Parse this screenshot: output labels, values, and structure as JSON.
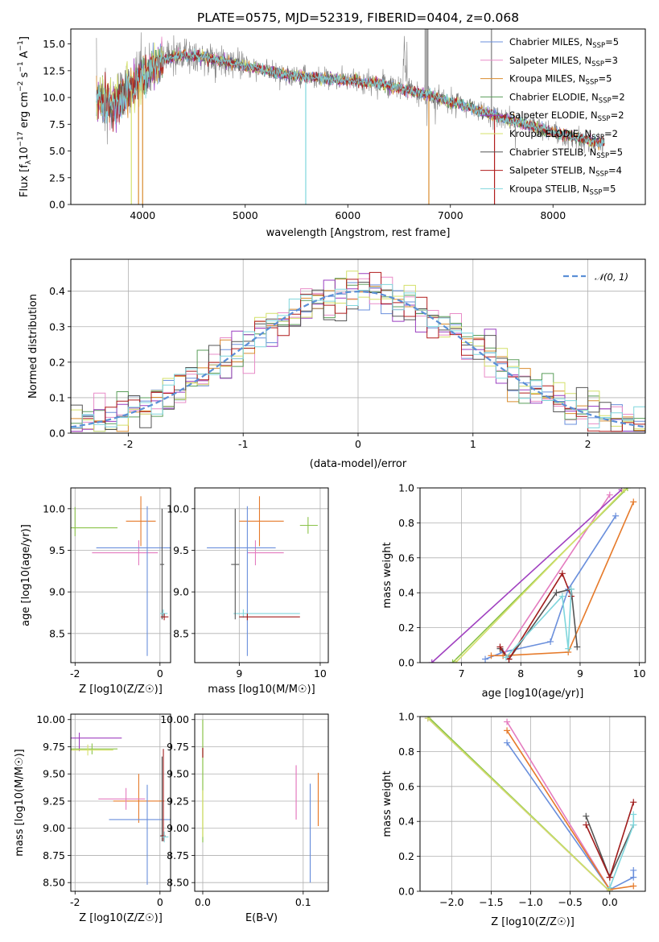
{
  "figure_title": "PLATE=0575, MJD=52319, FIBERID=0404, z=0.068",
  "colors": {
    "series": [
      "#6a8fdc",
      "#e88cc8",
      "#d98c2e",
      "#5a9e5a",
      "#9b3fc0",
      "#d4e06a",
      "#555555",
      "#b01c1c",
      "#7fd6dc"
    ],
    "kn": [
      "#6a8fdc",
      "#e47bbf",
      "#e67a2a",
      "#555555",
      "#a01c1c",
      "#7fd6dc",
      "#a040c0",
      "#8bc34a",
      "#d4e06a"
    ]
  },
  "chart_data": [
    {
      "type": "line",
      "name": "spectrum",
      "xlabel": "wavelength [Angstrom, rest frame]",
      "ylabel_main": "Flux [f",
      "ylabel_sub": "λ",
      "ylabel_rest": "10",
      "ylabel_sup1": "−17",
      "ylabel_tail": " erg cm",
      "ylabel_sup2": "−2",
      "ylabel_tail2": " s",
      "ylabel_sup3": "−1",
      "ylabel_tail3": " A",
      "ylabel_sup4": "−1",
      "ylabel_end": "]",
      "xlim": [
        3300,
        8900
      ],
      "ylim": [
        0,
        16.4
      ],
      "xticks": [
        4000,
        5000,
        6000,
        7000,
        8000
      ],
      "yticks": [
        "0.0",
        "2.5",
        "5.0",
        "7.5",
        "10.0",
        "12.5",
        "15.0"
      ],
      "legend": [
        {
          "pre": "Chabrier MILES, N",
          "sub": "SSP",
          "post": "=5"
        },
        {
          "pre": "Salpeter MILES, N",
          "sub": "SSP",
          "post": "=3"
        },
        {
          "pre": "Kroupa MILES, N",
          "sub": "SSP",
          "post": "=5"
        },
        {
          "pre": "Chabrier ELODIE, N",
          "sub": "SSP",
          "post": "=2"
        },
        {
          "pre": "Salpeter ELODIE, N",
          "sub": "SSP",
          "post": "=2"
        },
        {
          "pre": "Kroupa ELODIE, N",
          "sub": "SSP",
          "post": "=2"
        },
        {
          "pre": "Chabrier STELIB, N",
          "sub": "SSP",
          "post": "=5"
        },
        {
          "pre": "Salpeter STELIB, N",
          "sub": "SSP",
          "post": "=4"
        },
        {
          "pre": "Kroupa STELIB, N",
          "sub": "SSP",
          "post": "=5"
        }
      ],
      "continuum": [
        [
          3550,
          10.0
        ],
        [
          3700,
          9.2
        ],
        [
          3800,
          10.0
        ],
        [
          3900,
          10.8
        ],
        [
          4000,
          12.0
        ],
        [
          4200,
          13.5
        ],
        [
          4400,
          14.0
        ],
        [
          4700,
          13.6
        ],
        [
          5000,
          12.9
        ],
        [
          5300,
          12.3
        ],
        [
          5600,
          11.9
        ],
        [
          6000,
          11.6
        ],
        [
          6300,
          11.3
        ],
        [
          6600,
          10.7
        ],
        [
          6900,
          9.9
        ],
        [
          7200,
          9.0
        ],
        [
          7500,
          8.1
        ],
        [
          7800,
          7.3
        ],
        [
          8100,
          6.5
        ],
        [
          8400,
          5.9
        ],
        [
          8500,
          5.7
        ]
      ]
    },
    {
      "type": "line",
      "name": "residual-histogram",
      "xlabel": "(data-model)/error",
      "ylabel": "Normed distribution",
      "xlim": [
        -2.5,
        2.5
      ],
      "ylim": [
        0,
        0.49
      ],
      "xticks": [
        -2,
        -1,
        0,
        1,
        2
      ],
      "yticks": [
        "0.0",
        "0.1",
        "0.2",
        "0.3",
        "0.4"
      ],
      "legend": "𝒩(0, 1)",
      "bin_width": 0.1
    },
    {
      "type": "scatter",
      "name": "age-vs-Z",
      "xlabel": "Z [log10(Z/Z☉)]",
      "ylabel": "age  [log10(age/yr)]",
      "xlim": [
        -2.1,
        0.25
      ],
      "ylim": [
        8.15,
        10.25
      ],
      "xticks": [
        -2,
        0
      ],
      "yticks": [
        "8.5",
        "9.0",
        "9.5",
        "10.0"
      ],
      "points": [
        {
          "x": -0.45,
          "y": 9.85,
          "ex": [
            0.35,
            0.35
          ],
          "ey": [
            0.3,
            0.3
          ],
          "c": 2
        },
        {
          "x": -0.5,
          "y": 9.47,
          "ex": [
            1.1,
            0.45
          ],
          "ey": [
            0.15,
            0.15
          ],
          "c": 1
        },
        {
          "x": -0.3,
          "y": 9.53,
          "ex": [
            1.2,
            1.0
          ],
          "ey": [
            1.3,
            0.5
          ],
          "c": 0
        },
        {
          "x": -2.0,
          "y": 9.77,
          "ex": [
            0.1,
            1.0
          ],
          "ey": [
            0.1,
            0.25
          ],
          "c": 7
        },
        {
          "x": 0.05,
          "y": 9.33,
          "ex": [
            0.05,
            0.05
          ],
          "ey": [
            0.66,
            0.67
          ],
          "c": 3
        },
        {
          "x": 0.08,
          "y": 8.74,
          "ex": [
            0.08,
            0.1
          ],
          "ey": [
            0.05,
            0.05
          ],
          "c": 5
        },
        {
          "x": 0.1,
          "y": 8.7,
          "ex": [
            0.08,
            0.1
          ],
          "ey": [
            0.04,
            0.04
          ],
          "c": 4
        }
      ]
    },
    {
      "type": "scatter",
      "name": "age-vs-mass",
      "xlabel": "mass [log10(M/M☉)]",
      "ylabel": "",
      "xlim": [
        8.45,
        10.1
      ],
      "ylim": [
        8.15,
        10.25
      ],
      "xticks": [
        9,
        10
      ],
      "yticks": [
        "8.5",
        "9.0",
        "9.5",
        "10.0"
      ],
      "points": [
        {
          "x": 9.25,
          "y": 9.85,
          "ex": [
            0.25,
            0.3
          ],
          "ey": [
            0.3,
            0.3
          ],
          "c": 2
        },
        {
          "x": 9.2,
          "y": 9.47,
          "ex": [
            0.1,
            0.35
          ],
          "ey": [
            0.15,
            0.15
          ],
          "c": 1
        },
        {
          "x": 9.1,
          "y": 9.53,
          "ex": [
            0.5,
            0.35
          ],
          "ey": [
            1.3,
            0.5
          ],
          "c": 0
        },
        {
          "x": 9.85,
          "y": 9.8,
          "ex": [
            0.1,
            0.12
          ],
          "ey": [
            0.1,
            0.1
          ],
          "c": 7
        },
        {
          "x": 9.05,
          "y": 8.74,
          "ex": [
            0.12,
            0.7
          ],
          "ey": [
            0.05,
            0.05
          ],
          "c": 5
        },
        {
          "x": 9.1,
          "y": 8.7,
          "ex": [
            0.1,
            0.65
          ],
          "ey": [
            0.04,
            0.04
          ],
          "c": 4
        },
        {
          "x": 8.95,
          "y": 9.33,
          "ex": [
            0.05,
            0.05
          ],
          "ey": [
            0.66,
            0.67
          ],
          "c": 3
        }
      ]
    },
    {
      "type": "line",
      "name": "massweight-vs-age",
      "xlabel": "age  [log10(age/yr)]",
      "ylabel": "mass weight",
      "xlim": [
        6.3,
        10.1
      ],
      "ylim": [
        0,
        1.0
      ],
      "xticks": [
        7,
        8,
        9,
        10
      ],
      "yticks": [
        "0.0",
        "0.2",
        "0.4",
        "0.6",
        "0.8",
        "1.0"
      ],
      "series": [
        {
          "c": 0,
          "x": [
            7.4,
            7.7,
            8.5,
            8.8,
            9.6
          ],
          "y": [
            0.02,
            0.06,
            0.12,
            0.42,
            0.84
          ]
        },
        {
          "c": 1,
          "x": [
            7.7,
            9.5
          ],
          "y": [
            0.04,
            0.96
          ]
        },
        {
          "c": 2,
          "x": [
            7.5,
            7.7,
            8.8,
            9.9
          ],
          "y": [
            0.04,
            0.04,
            0.06,
            0.92
          ]
        },
        {
          "c": 3,
          "x": [
            7.65,
            7.8,
            8.6,
            8.85,
            8.95
          ],
          "y": [
            0.08,
            0.02,
            0.4,
            0.42,
            0.09
          ]
        },
        {
          "c": 4,
          "x": [
            7.65,
            7.8,
            8.7,
            8.85
          ],
          "y": [
            0.09,
            0.02,
            0.51,
            0.38
          ]
        },
        {
          "c": 5,
          "x": [
            7.75,
            8.7,
            8.8,
            8.85
          ],
          "y": [
            0.03,
            0.38,
            0.08,
            0.42
          ]
        },
        {
          "c": 6,
          "x": [
            6.5,
            9.7
          ],
          "y": [
            0.0,
            0.99
          ]
        },
        {
          "c": 7,
          "x": [
            6.85,
            9.8
          ],
          "y": [
            0.0,
            1.0
          ]
        },
        {
          "c": 8,
          "x": [
            6.9,
            9.75
          ],
          "y": [
            0.0,
            0.99
          ]
        }
      ]
    },
    {
      "type": "scatter",
      "name": "mass-vs-Z",
      "xlabel": "Z [log10(Z/Z☉)]",
      "ylabel": "mass [log10(M/M☉)]",
      "xlim": [
        -2.1,
        0.25
      ],
      "ylim": [
        8.42,
        10.05
      ],
      "xticks": [
        -2,
        0
      ],
      "yticks": [
        "8.50",
        "8.75",
        "9.00",
        "9.25",
        "9.50",
        "9.75",
        "10.00"
      ],
      "points": [
        {
          "x": -0.5,
          "y": 9.25,
          "ex": [
            0.6,
            0.6
          ],
          "ey": [
            0.2,
            0.25
          ],
          "c": 2
        },
        {
          "x": -0.8,
          "y": 9.27,
          "ex": [
            0.65,
            0.45
          ],
          "ey": [
            0.1,
            0.1
          ],
          "c": 1
        },
        {
          "x": -0.3,
          "y": 9.08,
          "ex": [
            0.9,
            0.6
          ],
          "ey": [
            0.6,
            0.32
          ],
          "c": 0
        },
        {
          "x": -1.9,
          "y": 9.83,
          "ex": [
            0.2,
            1.0
          ],
          "ey": [
            0.12,
            0.05
          ],
          "c": 6
        },
        {
          "x": -1.6,
          "y": 9.73,
          "ex": [
            0.5,
            0.6
          ],
          "ey": [
            0.05,
            0.05
          ],
          "c": 7
        },
        {
          "x": -1.7,
          "y": 9.72,
          "ex": [
            0.4,
            0.6
          ],
          "ey": [
            0.05,
            0.05
          ],
          "c": 8
        },
        {
          "x": 0.05,
          "y": 8.93,
          "ex": [
            0.05,
            0.05
          ],
          "ey": [
            0.05,
            0.73
          ],
          "c": 3
        },
        {
          "x": 0.08,
          "y": 8.93,
          "ex": [
            0.05,
            0.05
          ],
          "ey": [
            0.05,
            0.8
          ],
          "c": 4
        },
        {
          "x": 0.1,
          "y": 8.92,
          "ex": [
            0.05,
            0.1
          ],
          "ey": [
            0.05,
            0.05
          ],
          "c": 5
        }
      ]
    },
    {
      "type": "scatter",
      "name": "mass-vs-ebv",
      "xlabel": "E(B-V)",
      "ylabel": "",
      "xlim": [
        -0.008,
        0.125
      ],
      "ylim": [
        8.42,
        10.05
      ],
      "xticks": [
        "0.0",
        "0.1"
      ],
      "yticks": [
        "8.50",
        "8.75",
        "9.00",
        "9.25",
        "9.50",
        "9.75",
        "10.00"
      ],
      "bars": [
        {
          "x": 0.0,
          "y0": 8.87,
          "y1": 10.0,
          "c": 7
        },
        {
          "x": 0.0,
          "y0": 9.65,
          "y1": 9.74,
          "c": 4
        },
        {
          "x": 0.093,
          "y0": 9.08,
          "y1": 9.58,
          "c": 1
        },
        {
          "x": 0.107,
          "y0": 8.5,
          "y1": 9.41,
          "c": 0
        },
        {
          "x": 0.115,
          "y0": 9.02,
          "y1": 9.51,
          "c": 2
        },
        {
          "x": 0.0,
          "y0": 8.92,
          "y1": 9.35,
          "c": 8
        }
      ]
    },
    {
      "type": "line",
      "name": "massweight-vs-Z",
      "xlabel": "Z [log10(Z/Z☉)]",
      "ylabel": "mass weight",
      "xlim": [
        -2.4,
        0.45
      ],
      "ylim": [
        0,
        1.0
      ],
      "xticks": [
        "−2.0",
        "−1.5",
        "−1.0",
        "−0.5",
        "0.0"
      ],
      "xtickvals": [
        -2.0,
        -1.5,
        -1.0,
        -0.5,
        0.0
      ],
      "yticks": [
        "0.0",
        "0.2",
        "0.4",
        "0.6",
        "0.8",
        "1.0"
      ],
      "series": [
        {
          "c": 0,
          "x": [
            -1.3,
            0.0,
            0.3,
            0.3
          ],
          "y": [
            0.85,
            0.01,
            0.08,
            0.12
          ]
        },
        {
          "c": 1,
          "x": [
            -1.3,
            0.0
          ],
          "y": [
            0.97,
            0.01
          ]
        },
        {
          "c": 2,
          "x": [
            -1.3,
            0.0,
            0.3
          ],
          "y": [
            0.92,
            0.01,
            0.03
          ]
        },
        {
          "c": 3,
          "x": [
            -0.3,
            0.0,
            0.3
          ],
          "y": [
            0.43,
            0.08,
            0.38
          ]
        },
        {
          "c": 4,
          "x": [
            -0.3,
            0.0,
            0.3
          ],
          "y": [
            0.38,
            0.08,
            0.51
          ]
        },
        {
          "c": 5,
          "x": [
            0.0,
            0.3,
            0.3
          ],
          "y": [
            0.02,
            0.38,
            0.44
          ]
        },
        {
          "c": 6,
          "x": [
            -2.3,
            0.0
          ],
          "y": [
            0.99,
            0.0
          ]
        },
        {
          "c": 7,
          "x": [
            -2.3,
            0.0
          ],
          "y": [
            1.0,
            0.0
          ]
        },
        {
          "c": 8,
          "x": [
            -2.3,
            0.0
          ],
          "y": [
            0.99,
            0.0
          ]
        }
      ]
    }
  ]
}
